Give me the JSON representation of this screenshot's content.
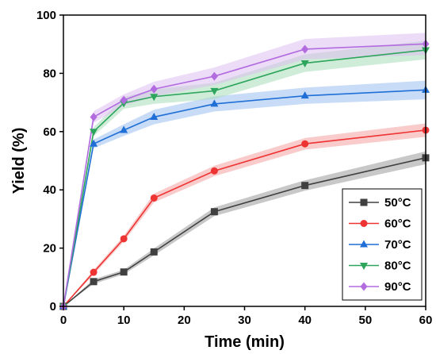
{
  "chart_data": {
    "type": "line",
    "xlabel": "Time (min)",
    "ylabel": "Yield (%)",
    "xlim": [
      0,
      60
    ],
    "ylim": [
      0,
      100
    ],
    "xticks": [
      0,
      10,
      20,
      30,
      40,
      50,
      60
    ],
    "yticks": [
      0,
      20,
      40,
      60,
      80,
      100
    ],
    "grid": false,
    "legend_position": "bottom-right",
    "x": [
      0,
      5,
      10,
      15,
      25,
      40,
      60
    ],
    "series": [
      {
        "name": "50",
        "unit": "°C",
        "marker": "square",
        "color": "#404040",
        "band_color": "#9a9a9a",
        "values": [
          0,
          8.5,
          11.8,
          18.7,
          32.5,
          41.5,
          51
        ],
        "band": [
          0,
          0.8,
          0.8,
          1.2,
          1.5,
          1.8,
          2.2
        ]
      },
      {
        "name": "60",
        "unit": "°C",
        "marker": "circle",
        "color": "#ee3333",
        "band_color": "#f4a0a0",
        "values": [
          0,
          11.7,
          23.2,
          37.2,
          46.5,
          55.8,
          60.5
        ],
        "band": [
          0,
          0.8,
          1.0,
          1.5,
          1.8,
          2.0,
          2.3
        ]
      },
      {
        "name": "70",
        "unit": "°C",
        "marker": "triangle-up",
        "color": "#1f6fd6",
        "band_color": "#9cc0f0",
        "values": [
          0,
          55.8,
          60.5,
          65,
          69.5,
          72.3,
          74.3
        ],
        "band": [
          0,
          1.5,
          2.0,
          2.5,
          2.6,
          2.8,
          3.2
        ]
      },
      {
        "name": "80",
        "unit": "°C",
        "marker": "triangle-down",
        "color": "#2ea55c",
        "band_color": "#a8dcb8",
        "values": [
          0,
          60,
          69.8,
          72,
          74,
          83.5,
          88
        ],
        "band": [
          0,
          1.5,
          2.0,
          2.5,
          2.8,
          3.0,
          3.2
        ]
      },
      {
        "name": "90",
        "unit": "°C",
        "marker": "diamond",
        "color": "#b36ce0",
        "band_color": "#dcc0f0",
        "values": [
          0,
          65,
          70.8,
          74.6,
          79,
          88.3,
          90.1
        ],
        "band": [
          0,
          2.0,
          2.0,
          2.5,
          3.0,
          3.5,
          3.8
        ]
      }
    ]
  }
}
